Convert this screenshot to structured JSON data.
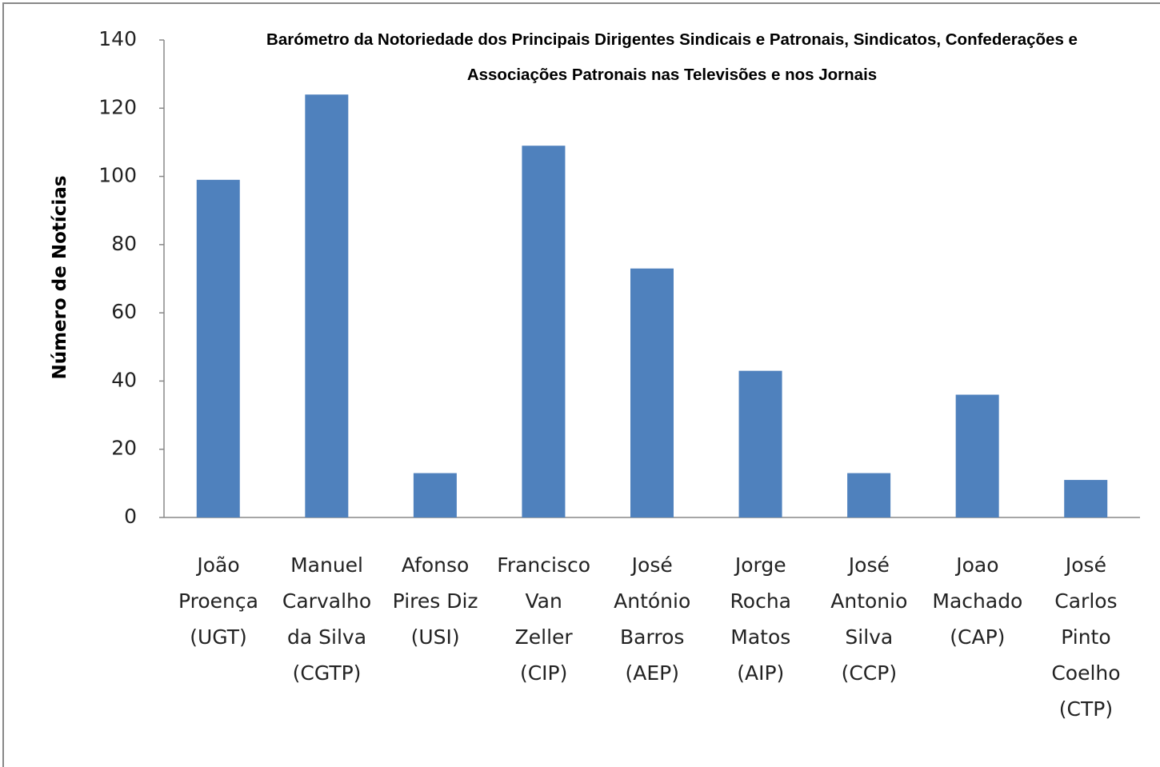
{
  "chart_data": {
    "type": "bar",
    "title": "Barómetro da Notoriedade dos Principais Dirigentes Sindicais e Patronais, Sindicatos, Confederações e Associações Patronais nas Televisões e nos Jornais",
    "y_label": "Número de Notícias",
    "categories": [
      "João\nProença\n(UGT)",
      "Manuel\nCarvalho\nda Silva\n(CGTP)",
      "Afonso\nPires Diz\n(USI)",
      "Francisco\nVan\nZeller\n(CIP)",
      "José\nAntónio\nBarros\n(AEP)",
      "Jorge\nRocha\nMatos\n(AIP)",
      "José\nAntonio\nSilva\n(CCP)",
      "Joao\nMachado\n(CAP)",
      "José\nCarlos\nPinto\nCoelho\n(CTP)"
    ],
    "values": [
      99,
      124,
      13,
      109,
      73,
      43,
      13,
      36,
      11
    ],
    "color": "#4f81bd",
    "ylim": [
      0,
      140
    ],
    "yticks": [
      0,
      20,
      40,
      60,
      80,
      100,
      120,
      140
    ],
    "grid": false
  }
}
